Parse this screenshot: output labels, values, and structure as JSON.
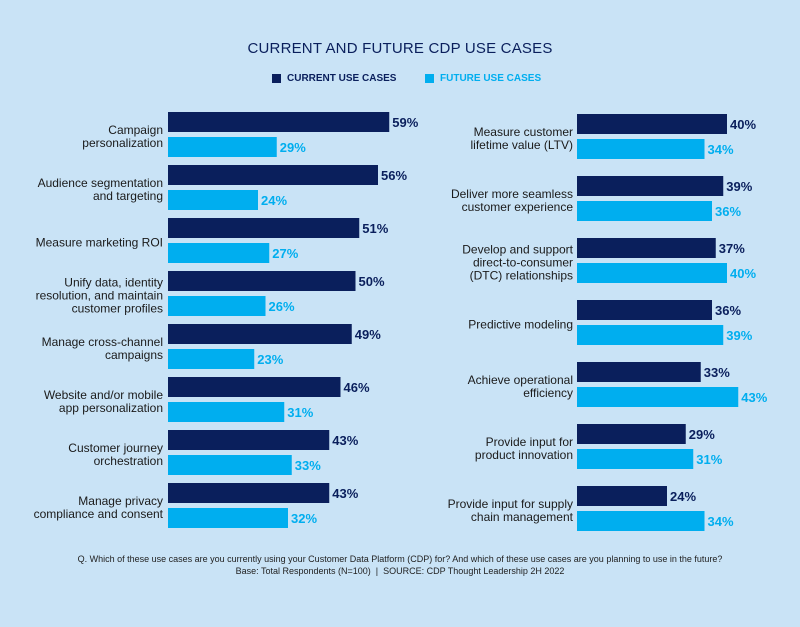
{
  "chart_data": [
    {
      "type": "bar",
      "orientation": "horizontal",
      "title": "CURRENT AND FUTURE CDP USE CASES",
      "legend": "top",
      "categories": [
        "Campaign personalization",
        "Audience segmentation and targeting",
        "Measure marketing ROI",
        "Unify data, identity resolution, and maintain customer profiles",
        "Manage cross-channel campaigns",
        "Website and/or mobile app personalization",
        "Customer journey orchestration",
        "Manage privacy compliance and consent"
      ],
      "label_lines": [
        [
          "Campaign",
          "personalization"
        ],
        [
          "Audience segmentation",
          "and targeting"
        ],
        [
          "Measure marketing ROI"
        ],
        [
          "Unify data, identity",
          "resolution, and maintain",
          "customer profiles"
        ],
        [
          "Manage cross-channel",
          "campaigns"
        ],
        [
          "Website and/or mobile",
          "app personalization"
        ],
        [
          "Customer journey",
          "orchestration"
        ],
        [
          "Manage privacy",
          "compliance and consent"
        ]
      ],
      "series": [
        {
          "name": "CURRENT USE CASES",
          "color": "#0a1f5c",
          "values": [
            59,
            56,
            51,
            50,
            49,
            46,
            43,
            43
          ]
        },
        {
          "name": "FUTURE USE CASES",
          "color": "#00aeef",
          "values": [
            29,
            24,
            27,
            26,
            23,
            31,
            33,
            32
          ]
        }
      ],
      "unit": "%"
    },
    {
      "type": "bar",
      "orientation": "horizontal",
      "categories": [
        "Measure customer lifetime value (LTV)",
        "Deliver more seamless customer experience",
        "Develop and support direct-to-consumer (DTC) relationships",
        "Predictive modeling",
        "Achieve operational efficiency",
        "Provide input for product innovation",
        "Provide input for supply chain management"
      ],
      "label_lines": [
        [
          "Measure customer",
          "lifetime value (LTV)"
        ],
        [
          "Deliver more seamless",
          "customer experience"
        ],
        [
          "Develop and support",
          "direct-to-consumer",
          "(DTC) relationships"
        ],
        [
          "Predictive modeling"
        ],
        [
          "Achieve operational",
          "efficiency"
        ],
        [
          "Provide input for",
          "product innovation"
        ],
        [
          "Provide input for supply",
          "chain management"
        ]
      ],
      "series": [
        {
          "name": "CURRENT USE CASES",
          "color": "#0a1f5c",
          "values": [
            40,
            39,
            37,
            36,
            33,
            29,
            24
          ]
        },
        {
          "name": "FUTURE USE CASES",
          "color": "#00aeef",
          "values": [
            34,
            36,
            40,
            39,
            43,
            31,
            34
          ]
        }
      ],
      "unit": "%"
    }
  ],
  "footer": {
    "question": "Q. Which of these use cases are you currently using your Customer Data Platform (CDP) for? And which of these use cases are you planning to use in the future?",
    "source": "Base: Total Respondents (N=100)  |  SOURCE: CDP Thought Leadership 2H 2022"
  }
}
